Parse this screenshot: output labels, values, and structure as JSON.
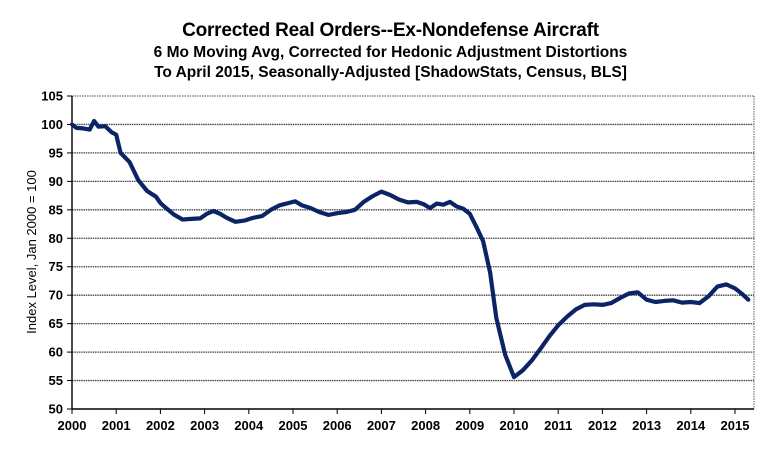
{
  "chart_data": {
    "type": "line",
    "title": "Corrected Real Orders--Ex-Nondefense Aircraft",
    "subtitle_lines": [
      "6 Mo Moving Avg, Corrected for Hedonic Adjustment Distortions",
      "To April 2015, Seasonally-Adjusted [ShadowStats, Census, BLS]"
    ],
    "xlabel": "",
    "ylabel": "Index Level, Jan 2000 = 100",
    "xlim": [
      2000,
      2015.45
    ],
    "ylim": [
      50,
      105
    ],
    "x_ticks": [
      2000,
      2001,
      2002,
      2003,
      2004,
      2005,
      2006,
      2007,
      2008,
      2009,
      2010,
      2011,
      2012,
      2013,
      2014,
      2015
    ],
    "x_tick_labels": [
      "2000",
      "2001",
      "2002",
      "2003",
      "2004",
      "2005",
      "2006",
      "2007",
      "2008",
      "2009",
      "2010",
      "2011",
      "2012",
      "2013",
      "2014",
      "2015"
    ],
    "y_ticks": [
      50,
      55,
      60,
      65,
      70,
      75,
      80,
      85,
      90,
      95,
      100,
      105
    ],
    "y_tick_labels": [
      "50",
      "55",
      "60",
      "65",
      "70",
      "75",
      "80",
      "85",
      "90",
      "95",
      "100",
      "105"
    ],
    "grid": "horizontal",
    "legend": "none",
    "line_color": "#0b2466",
    "series": [
      {
        "name": "Corrected Real Orders--Ex-Nondefense Aircraft",
        "x": [
          2000.0,
          2000.1,
          2000.25,
          2000.4,
          2000.5,
          2000.6,
          2000.75,
          2000.9,
          2001.0,
          2001.1,
          2001.3,
          2001.5,
          2001.7,
          2001.9,
          2002.0,
          2002.1,
          2002.3,
          2002.5,
          2002.7,
          2002.9,
          2003.05,
          2003.2,
          2003.35,
          2003.5,
          2003.7,
          2003.9,
          2004.1,
          2004.3,
          2004.5,
          2004.7,
          2004.9,
          2005.05,
          2005.2,
          2005.4,
          2005.6,
          2005.8,
          2006.0,
          2006.2,
          2006.4,
          2006.6,
          2006.8,
          2007.0,
          2007.2,
          2007.4,
          2007.6,
          2007.8,
          2007.95,
          2008.1,
          2008.25,
          2008.4,
          2008.55,
          2008.7,
          2008.85,
          2009.0,
          2009.15,
          2009.3,
          2009.46,
          2009.6,
          2009.8,
          2010.0,
          2010.2,
          2010.4,
          2010.6,
          2010.8,
          2011.0,
          2011.2,
          2011.4,
          2011.6,
          2011.8,
          2012.0,
          2012.2,
          2012.4,
          2012.6,
          2012.8,
          2013.0,
          2013.2,
          2013.4,
          2013.6,
          2013.8,
          2014.0,
          2014.2,
          2014.4,
          2014.6,
          2014.8,
          2015.0,
          2015.15,
          2015.3
        ],
        "values": [
          100.0,
          99.4,
          99.3,
          99.1,
          100.6,
          99.6,
          99.7,
          98.6,
          98.2,
          95.0,
          93.4,
          90.2,
          88.3,
          87.3,
          86.2,
          85.5,
          84.2,
          83.3,
          83.4,
          83.5,
          84.3,
          84.8,
          84.3,
          83.6,
          82.9,
          83.1,
          83.6,
          83.9,
          85.0,
          85.8,
          86.2,
          86.5,
          85.8,
          85.3,
          84.6,
          84.1,
          84.4,
          84.6,
          85.0,
          86.4,
          87.4,
          88.2,
          87.6,
          86.8,
          86.3,
          86.4,
          86.0,
          85.3,
          86.1,
          85.9,
          86.4,
          85.6,
          85.2,
          84.3,
          82.0,
          79.5,
          74.0,
          66.0,
          59.5,
          55.6,
          56.8,
          58.5,
          60.6,
          62.8,
          64.7,
          66.2,
          67.5,
          68.3,
          68.4,
          68.3,
          68.6,
          69.5,
          70.3,
          70.5,
          69.2,
          68.8,
          69.0,
          69.1,
          68.7,
          68.8,
          68.6,
          69.8,
          71.5,
          71.9,
          71.2,
          70.3,
          69.2
        ]
      }
    ]
  }
}
